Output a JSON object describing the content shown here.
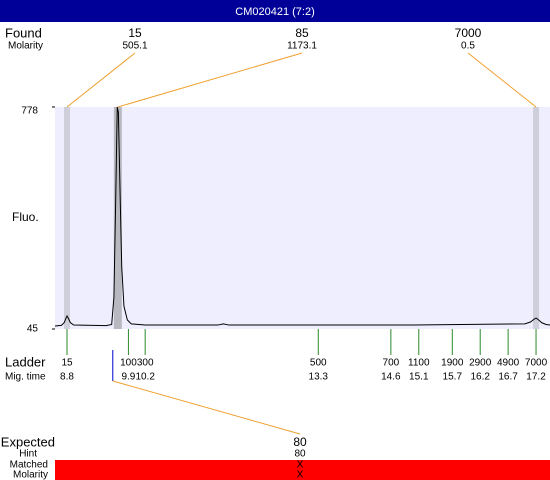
{
  "chart_data": {
    "type": "electropherogram",
    "title": "CM020421 (7:2)",
    "ylabel": "Fluo.",
    "ylim": [
      45,
      778
    ],
    "yticks": [
      45,
      778
    ],
    "xlim": [
      8.585,
      17.45
    ],
    "trace": {
      "color": "#000000",
      "x": [
        8.585,
        8.7,
        8.75,
        8.78,
        8.8,
        8.83,
        8.86,
        8.92,
        9.5,
        9.6,
        9.64,
        9.67,
        9.7,
        9.72,
        9.75,
        9.78,
        9.82,
        9.88,
        9.95,
        10.2,
        11.5,
        11.6,
        11.7,
        15.0,
        17.0,
        17.1,
        17.17,
        17.2,
        17.24,
        17.3,
        17.38,
        17.45
      ],
      "values": [
        55,
        57,
        66,
        80,
        88,
        78,
        66,
        58,
        56,
        60,
        150,
        450,
        778,
        760,
        500,
        250,
        120,
        75,
        62,
        58,
        58,
        62,
        58,
        58,
        62,
        68,
        78,
        81,
        76,
        66,
        60,
        58
      ]
    },
    "found": {
      "label": "Found",
      "molarity_label": "Molarity",
      "band_color": "#cfcfdc",
      "main_band_color": "#b8b8c0",
      "line_color": "#f0a030",
      "peaks": [
        {
          "size": 15,
          "molarity": 505.1,
          "mig_time": 8.8
        },
        {
          "size": 85,
          "molarity": 1173.1,
          "mig_time": 9.71
        },
        {
          "size": 7000,
          "molarity": 0.5,
          "mig_time": 17.2
        }
      ]
    },
    "ladder": {
      "label": "Ladder",
      "mig_label": "Mig. time",
      "color": "#2a8a2a",
      "sizes": [
        15,
        100,
        300,
        500,
        700,
        1100,
        1900,
        2900,
        4900,
        7000
      ],
      "mig_times": [
        8.8,
        9.9,
        10.2,
        13.3,
        14.6,
        15.1,
        15.7,
        16.2,
        16.7,
        17.2
      ]
    },
    "expected": {
      "label": "Expected",
      "size": 80,
      "mig_time": 9.62,
      "marker_color": "#0000cc",
      "hint_label": "Hint",
      "hint": 80,
      "matched_label": "Matched",
      "matched": "X",
      "molarity_label": "Molarity",
      "molarity": "X",
      "bar_color": "#ff0000"
    },
    "plot_background": "#eeeeff",
    "title_background": "#000099"
  }
}
